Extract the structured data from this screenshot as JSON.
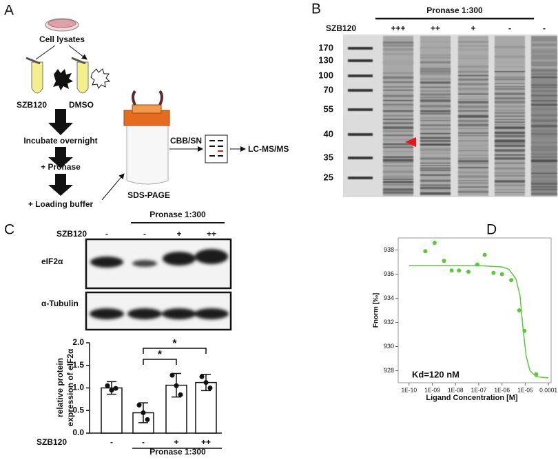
{
  "panel_a": {
    "label": "A",
    "cell_lysates": "Cell lysates",
    "compound": "SZB120",
    "control": "DMSO",
    "steps": [
      "Incubate overnight",
      "+ Pronase",
      "+ Loading buffer"
    ],
    "gel": "SDS-PAGE",
    "stain": "CBB/SN",
    "analysis": "LC-MS/MS"
  },
  "panel_b": {
    "label": "B",
    "treatment": "Pronase 1:300",
    "row_label": "SZB120",
    "lanes": [
      "+++",
      "++",
      "+",
      "-",
      "-"
    ],
    "markers": [
      170,
      130,
      100,
      70,
      55,
      40,
      35,
      25
    ]
  },
  "panel_c": {
    "label": "C",
    "treatment": "Pronase 1:300",
    "row_label": "SZB120",
    "lanes": [
      "-",
      "-",
      "+",
      "++"
    ],
    "blots": [
      "eIF2α",
      "α-Tubulin"
    ]
  },
  "panel_d": {
    "label": "D"
  },
  "chart_data": [
    {
      "type": "bar",
      "ylabel": [
        "relative protein",
        "expression of eIF2α"
      ],
      "categories": [
        "-",
        "-",
        "+",
        "++"
      ],
      "values": [
        1.0,
        0.45,
        1.06,
        1.12
      ],
      "errors": [
        0.14,
        0.22,
        0.26,
        0.18
      ],
      "points": [
        [
          1.05,
          0.95,
          0.99
        ],
        [
          0.62,
          0.45,
          0.3
        ],
        [
          1.28,
          1.05,
          0.85
        ],
        [
          1.25,
          1.12,
          1.0
        ]
      ],
      "row_label": "SZB120",
      "group_label": "Pronase 1:300",
      "annotations": [
        "*",
        "*"
      ],
      "color": "#ffffff",
      "ylim": [
        0,
        2.0
      ],
      "yticks": [
        {
          "value": 0,
          "label": "0.0"
        },
        0.5,
        {
          "value": 1,
          "label": "1.0"
        },
        1.5,
        {
          "value": 2,
          "label": "2.0"
        }
      ]
    },
    {
      "type": "scatter",
      "xlabel": "Ligand Concentration [M]",
      "ylabel": "Fnorm [‰]",
      "annotation": "Kd=120 nM",
      "log_x": true,
      "x": [
        5e-10,
        1.26e-09,
        3.2e-09,
        6.8e-09,
        1.4e-08,
        3.6e-08,
        8.7e-08,
        1.8e-07,
        4.3e-07,
        1e-06,
        2.5e-06,
        5.5e-06,
        9.3e-06,
        2.95e-05
      ],
      "values": [
        937.9,
        938.6,
        937.1,
        936.3,
        936.3,
        936.2,
        936.8,
        937.6,
        936.1,
        936.0,
        935.5,
        933.0,
        931.3,
        927.7
      ],
      "color": "#5cc93a",
      "fit": {
        "x": [
          1e-10,
          1e-08,
          1e-07,
          1e-06,
          2e-06,
          4e-06,
          6e-06,
          8e-06,
          1.1e-05,
          1.6e-05,
          3e-05,
          0.0001
        ],
        "values": [
          936.7,
          936.7,
          936.7,
          936.6,
          936.4,
          935.6,
          934.2,
          931.5,
          929.2,
          928.0,
          927.5,
          927.4
        ]
      },
      "xlim": [
        3.4e-11,
        0.00013
      ],
      "ylim": [
        927,
        939
      ],
      "xticks": [
        {
          "value": 1e-10,
          "label": "1E-10"
        },
        {
          "value": 1e-09,
          "label": "1E-09"
        },
        {
          "value": 1e-08,
          "label": "1E-08"
        },
        {
          "value": 1e-07,
          "label": "1E-07"
        },
        {
          "value": 1e-06,
          "label": "1E-06"
        },
        {
          "value": 1e-05,
          "label": "1E-05"
        },
        0.0001
      ],
      "yticks": [
        928,
        930,
        932,
        934,
        936,
        938
      ]
    }
  ]
}
